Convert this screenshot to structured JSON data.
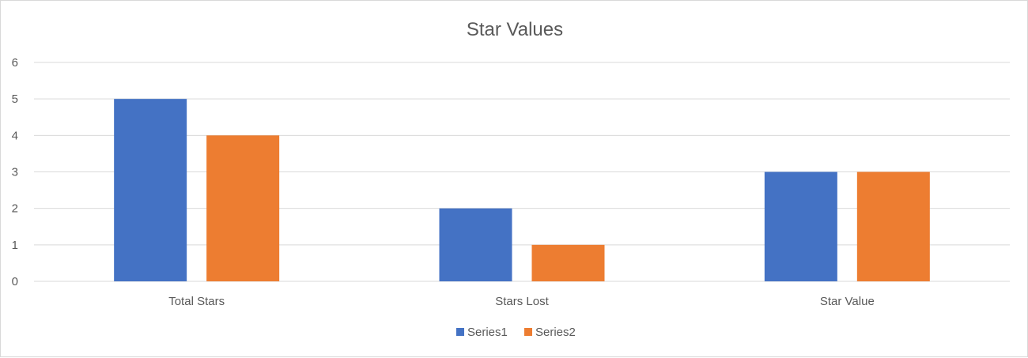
{
  "chart_data": {
    "type": "bar",
    "title": "Star Values",
    "xlabel": "",
    "ylabel": "",
    "categories": [
      "Total Stars",
      "Stars Lost",
      "Star Value"
    ],
    "series": [
      {
        "name": "Series1",
        "values": [
          5,
          2,
          3
        ],
        "color": "#4472c4"
      },
      {
        "name": "Series2",
        "values": [
          4,
          1,
          3
        ],
        "color": "#ed7d31"
      }
    ],
    "ylim": [
      0,
      6
    ],
    "yticks": [
      "0",
      "1",
      "2",
      "3",
      "4",
      "5",
      "6"
    ],
    "grid": true,
    "legend_position": "bottom",
    "gridline_color": "#d9d9d9",
    "text_color": "#595959"
  }
}
